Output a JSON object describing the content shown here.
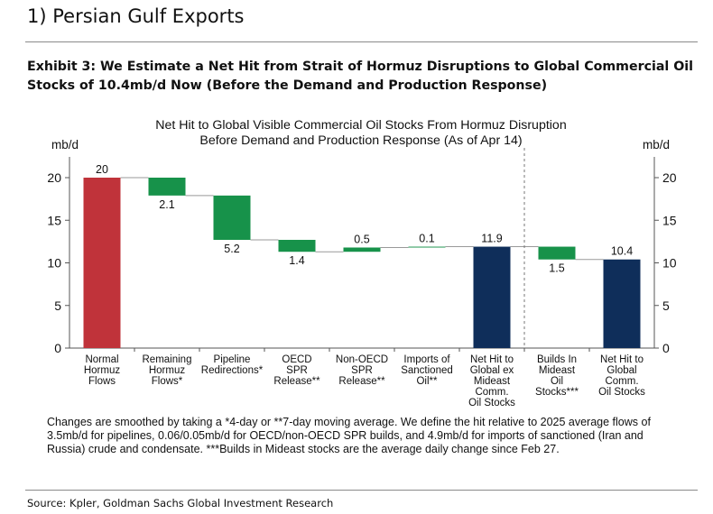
{
  "section_title": "1) Persian Gulf Exports",
  "exhibit_title": "Exhibit 3: We Estimate a Net Hit from Strait of Hormuz Disruptions to Global Commercial Oil Stocks of 10.4mb/d Now (Before the Demand and Production Response)",
  "chart_title_line1": "Net Hit to Global Visible Commercial Oil Stocks From Hormuz Disruption",
  "chart_title_line2": "Before Demand and Production Response (As of Apr 14)",
  "y_unit_left": "mb/d",
  "y_unit_right": "mb/d",
  "footnote": "Changes are smoothed by taking a *4-day or **7-day moving average. We define the hit relative to 2025 average flows of 3.5mb/d for pipelines, 0.06/0.05mb/d for OECD/non-OECD SPR builds, and 4.9mb/d for imports of sanctioned (Iran and Russia) crude and condensate. ***Builds in Mideast stocks are the average daily change since Feb 27.",
  "source": "Source: Kpler, Goldman Sachs Global Investment Research",
  "colors": {
    "total_red": "#c0333a",
    "total_navy": "#0f2e5a",
    "step": "#17924a",
    "connector": "#999999",
    "divider": "#777777"
  },
  "chart_data": {
    "type": "bar",
    "subtype": "waterfall",
    "ylim": [
      0,
      22
    ],
    "yticks": [
      0,
      5,
      10,
      15,
      20
    ],
    "categories": [
      [
        "Normal",
        "Hormuz",
        "Flows"
      ],
      [
        "Remaining",
        "Hormuz",
        "Flows*"
      ],
      [
        "Pipeline",
        "Redirections*"
      ],
      [
        "OECD",
        "SPR",
        "Release**"
      ],
      [
        "Non-OECD",
        "SPR",
        "Release**"
      ],
      [
        "Imports of",
        "Sanctioned",
        "Oil**"
      ],
      [
        "Net Hit to",
        "Global ex",
        "Mideast",
        "Comm.",
        "Oil Stocks"
      ],
      [
        "Builds In",
        "Mideast",
        "Oil",
        "Stocks***"
      ],
      [
        "Net Hit to",
        "Global",
        "Comm.",
        "Oil Stocks"
      ]
    ],
    "bars": [
      {
        "kind": "total",
        "start": 0,
        "end": 20,
        "label": "20",
        "color": "red"
      },
      {
        "kind": "step",
        "start": 20,
        "end": 17.9,
        "label": "2.1"
      },
      {
        "kind": "step",
        "start": 17.9,
        "end": 12.7,
        "label": "5.2"
      },
      {
        "kind": "step",
        "start": 12.7,
        "end": 11.3,
        "label": "1.4"
      },
      {
        "kind": "step",
        "start": 11.3,
        "end": 11.8,
        "label": "0.5"
      },
      {
        "kind": "step",
        "start": 11.8,
        "end": 11.9,
        "label": "0.1"
      },
      {
        "kind": "total",
        "start": 0,
        "end": 11.9,
        "label": "11.9",
        "color": "navy"
      },
      {
        "kind": "step",
        "start": 11.9,
        "end": 10.4,
        "label": "1.5"
      },
      {
        "kind": "total",
        "start": 0,
        "end": 10.4,
        "label": "10.4",
        "color": "navy"
      }
    ],
    "divider_after_index": 6,
    "grid": false
  }
}
